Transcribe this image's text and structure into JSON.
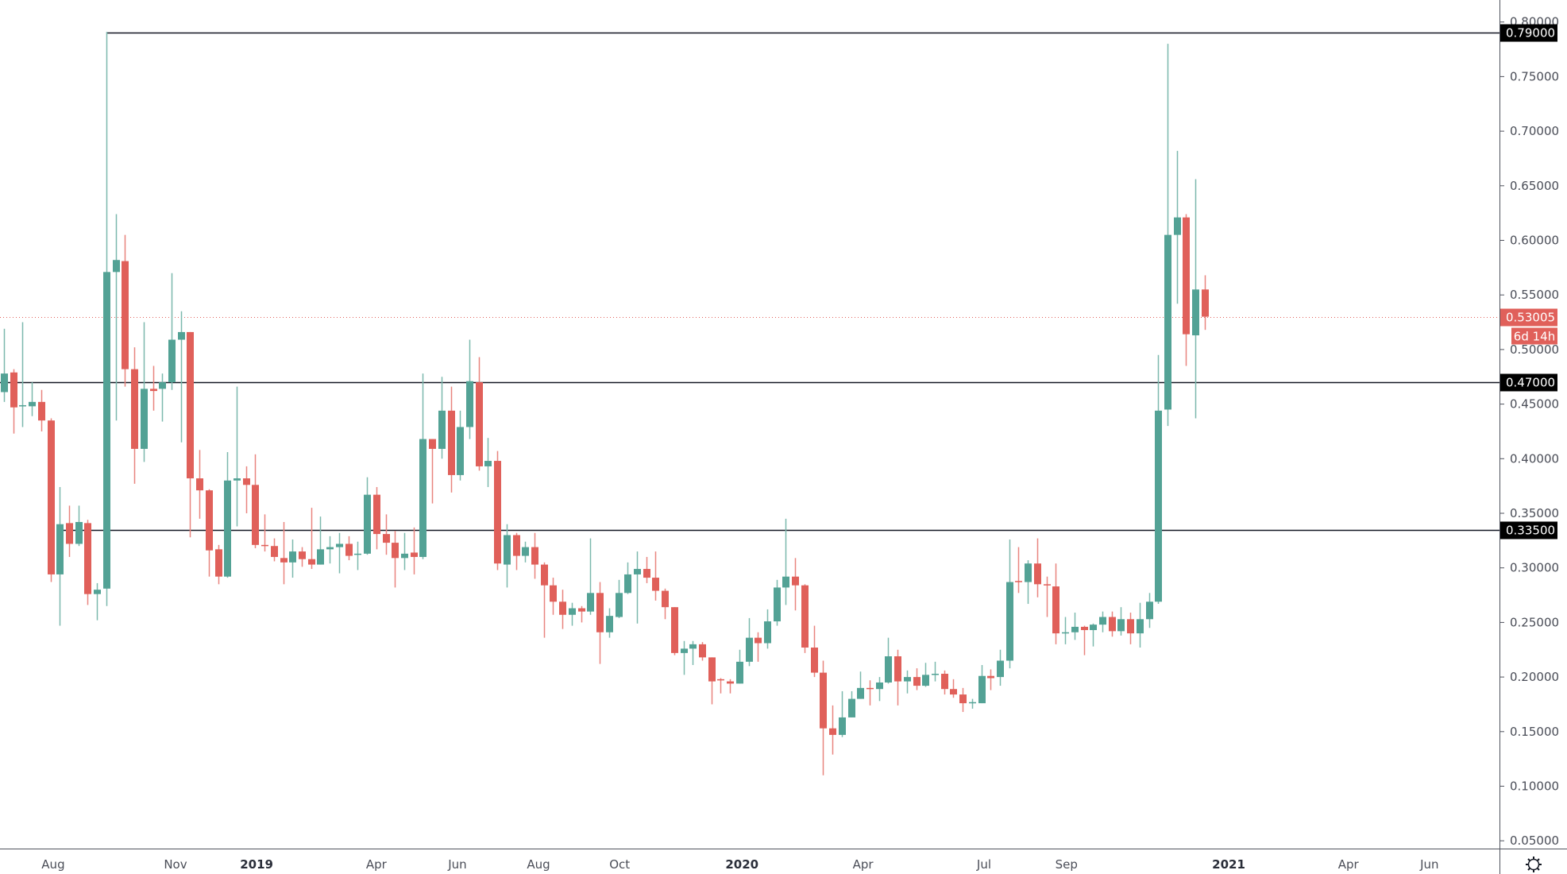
{
  "chart_data": {
    "type": "candlestick",
    "interval": "weekly",
    "colors": {
      "up": "#53a295",
      "down": "#e0605a",
      "up_wick": "#7bb8ad",
      "down_wick": "#e8847e",
      "level_line": "#131722",
      "current_price": "#e0605a"
    },
    "ylim": [
      0.05,
      0.8
    ],
    "y_ticks": [
      "0.80000",
      "0.75000",
      "0.70000",
      "0.65000",
      "0.60000",
      "0.55000",
      "0.50000",
      "0.45000",
      "0.40000",
      "0.35000",
      "0.30000",
      "0.25000",
      "0.20000",
      "0.15000",
      "0.10000",
      "0.05000"
    ],
    "x_ticks": [
      {
        "label": "Aug",
        "date": "2018-08-01",
        "major": false
      },
      {
        "label": "Nov",
        "date": "2018-11-01",
        "major": false
      },
      {
        "label": "2019",
        "date": "2019-01-01",
        "major": true
      },
      {
        "label": "Apr",
        "date": "2019-04-01",
        "major": false
      },
      {
        "label": "Jun",
        "date": "2019-06-01",
        "major": false
      },
      {
        "label": "Aug",
        "date": "2019-08-01",
        "major": false
      },
      {
        "label": "Oct",
        "date": "2019-10-01",
        "major": false
      },
      {
        "label": "2020",
        "date": "2020-01-01",
        "major": true
      },
      {
        "label": "Apr",
        "date": "2020-04-01",
        "major": false
      },
      {
        "label": "Jul",
        "date": "2020-07-01",
        "major": false
      },
      {
        "label": "Sep",
        "date": "2020-09-01",
        "major": false
      },
      {
        "label": "2021",
        "date": "2021-01-01",
        "major": true
      },
      {
        "label": "Apr",
        "date": "2021-04-01",
        "major": false
      },
      {
        "label": "Jun",
        "date": "2021-06-01",
        "major": false
      }
    ],
    "levels": [
      {
        "price": 0.79,
        "label": "0.79000",
        "from_date": "2018-09-10"
      },
      {
        "price": 0.47,
        "label": "0.47000",
        "from_date": null
      },
      {
        "price": 0.335,
        "label": "0.33500",
        "from_date": "2018-08-06"
      }
    ],
    "current_price": {
      "price": 0.53005,
      "label": "0.53005",
      "countdown": "6d 14h"
    },
    "candles_fields": [
      "date",
      "open",
      "high",
      "low",
      "close"
    ],
    "candles": [
      [
        "2018-06-25",
        0.461,
        0.519,
        0.452,
        0.478
      ],
      [
        "2018-07-02",
        0.479,
        0.482,
        0.423,
        0.447
      ],
      [
        "2018-07-09",
        0.448,
        0.525,
        0.429,
        0.449
      ],
      [
        "2018-07-16",
        0.448,
        0.47,
        0.439,
        0.452
      ],
      [
        "2018-07-23",
        0.452,
        0.463,
        0.425,
        0.435
      ],
      [
        "2018-07-30",
        0.435,
        0.437,
        0.287,
        0.294
      ],
      [
        "2018-08-06",
        0.294,
        0.374,
        0.247,
        0.34
      ],
      [
        "2018-08-13",
        0.341,
        0.357,
        0.31,
        0.322
      ],
      [
        "2018-08-20",
        0.322,
        0.357,
        0.32,
        0.342
      ],
      [
        "2018-08-27",
        0.341,
        0.344,
        0.266,
        0.276
      ],
      [
        "2018-09-03",
        0.276,
        0.286,
        0.252,
        0.28
      ],
      [
        "2018-09-10",
        0.281,
        0.791,
        0.265,
        0.571
      ],
      [
        "2018-09-17",
        0.571,
        0.624,
        0.435,
        0.582
      ],
      [
        "2018-09-24",
        0.581,
        0.605,
        0.466,
        0.482
      ],
      [
        "2018-10-01",
        0.482,
        0.502,
        0.377,
        0.409
      ],
      [
        "2018-10-08",
        0.409,
        0.525,
        0.397,
        0.464
      ],
      [
        "2018-10-15",
        0.464,
        0.485,
        0.444,
        0.462
      ],
      [
        "2018-10-22",
        0.464,
        0.478,
        0.434,
        0.47
      ],
      [
        "2018-10-29",
        0.47,
        0.57,
        0.463,
        0.509
      ],
      [
        "2018-11-05",
        0.509,
        0.535,
        0.415,
        0.516
      ],
      [
        "2018-11-12",
        0.516,
        0.516,
        0.328,
        0.382
      ],
      [
        "2018-11-19",
        0.382,
        0.408,
        0.345,
        0.371
      ],
      [
        "2018-11-26",
        0.371,
        0.372,
        0.292,
        0.316
      ],
      [
        "2018-12-03",
        0.317,
        0.321,
        0.285,
        0.292
      ],
      [
        "2018-12-10",
        0.292,
        0.406,
        0.291,
        0.38
      ],
      [
        "2018-12-17",
        0.38,
        0.466,
        0.338,
        0.382
      ],
      [
        "2018-12-24",
        0.382,
        0.393,
        0.35,
        0.376
      ],
      [
        "2018-12-31",
        0.376,
        0.404,
        0.318,
        0.321
      ],
      [
        "2019-01-07",
        0.321,
        0.349,
        0.315,
        0.32
      ],
      [
        "2019-01-14",
        0.32,
        0.327,
        0.306,
        0.31
      ],
      [
        "2019-01-21",
        0.309,
        0.342,
        0.285,
        0.305
      ],
      [
        "2019-01-28",
        0.305,
        0.326,
        0.291,
        0.315
      ],
      [
        "2019-02-04",
        0.315,
        0.319,
        0.301,
        0.308
      ],
      [
        "2019-02-11",
        0.308,
        0.355,
        0.299,
        0.303
      ],
      [
        "2019-02-18",
        0.303,
        0.347,
        0.303,
        0.317
      ],
      [
        "2019-02-25",
        0.317,
        0.329,
        0.304,
        0.319
      ],
      [
        "2019-03-04",
        0.319,
        0.332,
        0.295,
        0.322
      ],
      [
        "2019-03-11",
        0.322,
        0.329,
        0.307,
        0.311
      ],
      [
        "2019-03-18",
        0.312,
        0.324,
        0.298,
        0.313
      ],
      [
        "2019-03-25",
        0.313,
        0.383,
        0.312,
        0.367
      ],
      [
        "2019-04-01",
        0.367,
        0.374,
        0.317,
        0.331
      ],
      [
        "2019-04-08",
        0.331,
        0.349,
        0.312,
        0.323
      ],
      [
        "2019-04-15",
        0.323,
        0.334,
        0.282,
        0.309
      ],
      [
        "2019-04-22",
        0.309,
        0.332,
        0.298,
        0.313
      ],
      [
        "2019-04-29",
        0.314,
        0.337,
        0.294,
        0.31
      ],
      [
        "2019-05-06",
        0.31,
        0.478,
        0.308,
        0.418
      ],
      [
        "2019-05-13",
        0.418,
        0.418,
        0.359,
        0.409
      ],
      [
        "2019-05-20",
        0.409,
        0.475,
        0.4,
        0.444
      ],
      [
        "2019-05-27",
        0.444,
        0.466,
        0.369,
        0.385
      ],
      [
        "2019-06-03",
        0.385,
        0.444,
        0.38,
        0.429
      ],
      [
        "2019-06-10",
        0.429,
        0.509,
        0.418,
        0.471
      ],
      [
        "2019-06-17",
        0.47,
        0.493,
        0.389,
        0.393
      ],
      [
        "2019-06-24",
        0.393,
        0.419,
        0.374,
        0.398
      ],
      [
        "2019-07-01",
        0.398,
        0.407,
        0.298,
        0.304
      ],
      [
        "2019-07-08",
        0.303,
        0.34,
        0.282,
        0.33
      ],
      [
        "2019-07-15",
        0.33,
        0.332,
        0.298,
        0.311
      ],
      [
        "2019-07-22",
        0.311,
        0.324,
        0.305,
        0.319
      ],
      [
        "2019-07-29",
        0.319,
        0.332,
        0.29,
        0.303
      ],
      [
        "2019-08-05",
        0.303,
        0.305,
        0.236,
        0.284
      ],
      [
        "2019-08-12",
        0.284,
        0.291,
        0.257,
        0.269
      ],
      [
        "2019-08-19",
        0.269,
        0.28,
        0.244,
        0.257
      ],
      [
        "2019-08-26",
        0.257,
        0.268,
        0.247,
        0.263
      ],
      [
        "2019-09-02",
        0.263,
        0.265,
        0.25,
        0.26
      ],
      [
        "2019-09-09",
        0.26,
        0.327,
        0.257,
        0.277
      ],
      [
        "2019-09-16",
        0.277,
        0.287,
        0.212,
        0.241
      ],
      [
        "2019-09-23",
        0.241,
        0.263,
        0.236,
        0.256
      ],
      [
        "2019-09-30",
        0.255,
        0.289,
        0.254,
        0.277
      ],
      [
        "2019-10-07",
        0.277,
        0.305,
        0.276,
        0.294
      ],
      [
        "2019-10-14",
        0.294,
        0.315,
        0.249,
        0.299
      ],
      [
        "2019-10-21",
        0.299,
        0.31,
        0.286,
        0.291
      ],
      [
        "2019-10-28",
        0.291,
        0.315,
        0.27,
        0.279
      ],
      [
        "2019-11-04",
        0.279,
        0.281,
        0.253,
        0.264
      ],
      [
        "2019-11-11",
        0.264,
        0.264,
        0.22,
        0.222
      ],
      [
        "2019-11-18",
        0.222,
        0.233,
        0.202,
        0.226
      ],
      [
        "2019-11-25",
        0.226,
        0.233,
        0.211,
        0.23
      ],
      [
        "2019-12-02",
        0.23,
        0.232,
        0.215,
        0.218
      ],
      [
        "2019-12-09",
        0.218,
        0.218,
        0.175,
        0.196
      ],
      [
        "2019-12-16",
        0.198,
        0.199,
        0.185,
        0.197
      ],
      [
        "2019-12-23",
        0.196,
        0.198,
        0.185,
        0.194
      ],
      [
        "2019-12-30",
        0.194,
        0.225,
        0.194,
        0.214
      ],
      [
        "2020-01-06",
        0.214,
        0.254,
        0.21,
        0.236
      ],
      [
        "2020-01-13",
        0.236,
        0.241,
        0.214,
        0.231
      ],
      [
        "2020-01-20",
        0.231,
        0.262,
        0.226,
        0.251
      ],
      [
        "2020-01-27",
        0.251,
        0.289,
        0.247,
        0.282
      ],
      [
        "2020-02-03",
        0.282,
        0.345,
        0.266,
        0.292
      ],
      [
        "2020-02-10",
        0.292,
        0.309,
        0.261,
        0.284
      ],
      [
        "2020-02-17",
        0.284,
        0.285,
        0.222,
        0.227
      ],
      [
        "2020-02-24",
        0.227,
        0.247,
        0.2,
        0.204
      ],
      [
        "2020-03-02",
        0.204,
        0.215,
        0.11,
        0.153
      ],
      [
        "2020-03-09",
        0.153,
        0.174,
        0.129,
        0.147
      ],
      [
        "2020-03-16",
        0.147,
        0.187,
        0.145,
        0.163
      ],
      [
        "2020-03-23",
        0.163,
        0.187,
        0.163,
        0.18
      ],
      [
        "2020-03-30",
        0.18,
        0.205,
        0.18,
        0.19
      ],
      [
        "2020-04-06",
        0.19,
        0.197,
        0.174,
        0.189
      ],
      [
        "2020-04-13",
        0.189,
        0.2,
        0.178,
        0.195
      ],
      [
        "2020-04-20",
        0.195,
        0.236,
        0.194,
        0.219
      ],
      [
        "2020-04-27",
        0.219,
        0.225,
        0.174,
        0.196
      ],
      [
        "2020-05-04",
        0.196,
        0.206,
        0.185,
        0.2
      ],
      [
        "2020-05-11",
        0.2,
        0.208,
        0.188,
        0.192
      ],
      [
        "2020-05-18",
        0.192,
        0.213,
        0.191,
        0.202
      ],
      [
        "2020-05-25",
        0.202,
        0.214,
        0.196,
        0.203
      ],
      [
        "2020-06-01",
        0.203,
        0.206,
        0.184,
        0.189
      ],
      [
        "2020-06-08",
        0.189,
        0.198,
        0.181,
        0.184
      ],
      [
        "2020-06-15",
        0.184,
        0.19,
        0.168,
        0.176
      ],
      [
        "2020-06-22",
        0.176,
        0.18,
        0.171,
        0.177
      ],
      [
        "2020-06-29",
        0.176,
        0.211,
        0.176,
        0.201
      ],
      [
        "2020-07-06",
        0.201,
        0.207,
        0.188,
        0.199
      ],
      [
        "2020-07-13",
        0.2,
        0.225,
        0.192,
        0.215
      ],
      [
        "2020-07-20",
        0.215,
        0.326,
        0.208,
        0.287
      ],
      [
        "2020-07-27",
        0.288,
        0.319,
        0.277,
        0.287
      ],
      [
        "2020-08-03",
        0.287,
        0.307,
        0.267,
        0.304
      ],
      [
        "2020-08-10",
        0.304,
        0.327,
        0.273,
        0.285
      ],
      [
        "2020-08-17",
        0.285,
        0.292,
        0.255,
        0.284
      ],
      [
        "2020-08-24",
        0.283,
        0.304,
        0.23,
        0.24
      ],
      [
        "2020-08-31",
        0.24,
        0.255,
        0.23,
        0.241
      ],
      [
        "2020-09-07",
        0.241,
        0.259,
        0.234,
        0.246
      ],
      [
        "2020-09-14",
        0.246,
        0.247,
        0.22,
        0.243
      ],
      [
        "2020-09-21",
        0.243,
        0.249,
        0.228,
        0.248
      ],
      [
        "2020-09-28",
        0.248,
        0.26,
        0.241,
        0.255
      ],
      [
        "2020-10-05",
        0.255,
        0.26,
        0.237,
        0.242
      ],
      [
        "2020-10-12",
        0.242,
        0.264,
        0.238,
        0.253
      ],
      [
        "2020-10-19",
        0.253,
        0.259,
        0.23,
        0.24
      ],
      [
        "2020-10-26",
        0.24,
        0.268,
        0.227,
        0.253
      ],
      [
        "2020-11-02",
        0.253,
        0.277,
        0.245,
        0.269
      ],
      [
        "2020-11-09",
        0.269,
        0.495,
        0.267,
        0.444
      ],
      [
        "2020-11-16",
        0.445,
        0.78,
        0.43,
        0.605
      ],
      [
        "2020-11-23",
        0.605,
        0.682,
        0.542,
        0.621
      ],
      [
        "2020-11-30",
        0.621,
        0.624,
        0.485,
        0.514
      ],
      [
        "2020-12-07",
        0.513,
        0.656,
        0.437,
        0.555
      ],
      [
        "2020-12-14",
        0.555,
        0.568,
        0.518,
        0.53005
      ]
    ]
  },
  "toolbar": {
    "settings_icon": "gear-icon"
  }
}
